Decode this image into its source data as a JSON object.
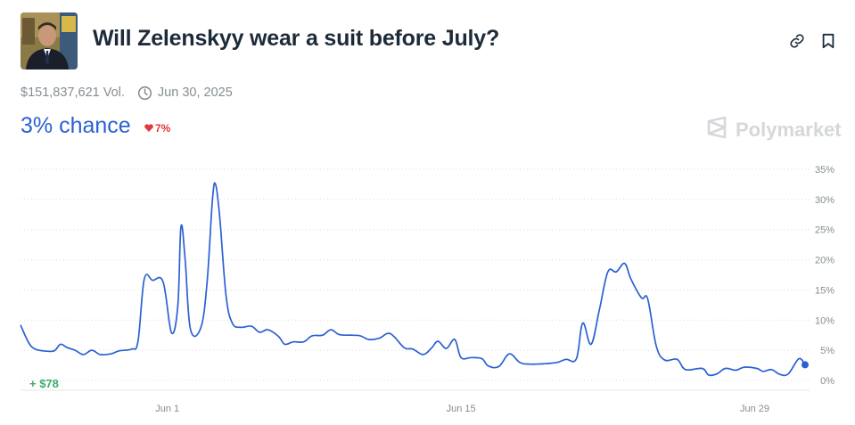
{
  "header": {
    "title": "Will Zelenskyy wear a suit before July?",
    "link_icon": "link-icon",
    "bookmark_icon": "bookmark-icon"
  },
  "meta": {
    "volume": "$151,837,621 Vol.",
    "end_date": "Jun 30, 2025"
  },
  "status": {
    "chance": "3% chance",
    "delta": "7%",
    "delta_direction": "down",
    "delta_color": "#e23939"
  },
  "brand": {
    "name": "Polymarket"
  },
  "colors": {
    "accent": "#2b60d3",
    "title": "#1d2b39",
    "muted": "#858d92",
    "gain": "#3cab6c"
  },
  "chart_data": {
    "type": "line",
    "x_ticks": [
      "Jun 1",
      "Jun 15",
      "Jun 29"
    ],
    "y_ticks": [
      "0%",
      "5%",
      "10%",
      "15%",
      "20%",
      "25%",
      "30%",
      "35%"
    ],
    "ylim": [
      0,
      35
    ],
    "grid": true,
    "annotation": "+ $78",
    "series": [
      {
        "values": [
          [
            0,
            9.2
          ],
          [
            0.4,
            6.2
          ],
          [
            0.7,
            5.2
          ],
          [
            1.1,
            4.9
          ],
          [
            1.6,
            4.9
          ],
          [
            1.9,
            6.0
          ],
          [
            2.2,
            5.5
          ],
          [
            2.6,
            5.0
          ],
          [
            3.0,
            4.3
          ],
          [
            3.4,
            5.0
          ],
          [
            3.8,
            4.3
          ],
          [
            4.3,
            4.4
          ],
          [
            4.7,
            4.9
          ],
          [
            5.3,
            5.2
          ],
          [
            5.6,
            6.5
          ],
          [
            5.9,
            16.8
          ],
          [
            6.3,
            16.6
          ],
          [
            6.8,
            16.3
          ],
          [
            7.2,
            7.9
          ],
          [
            7.5,
            12.5
          ],
          [
            7.65,
            25.5
          ],
          [
            7.85,
            20.0
          ],
          [
            8.1,
            8.5
          ],
          [
            8.6,
            8.8
          ],
          [
            8.9,
            16.5
          ],
          [
            9.15,
            30.0
          ],
          [
            9.3,
            32.5
          ],
          [
            9.5,
            27.0
          ],
          [
            9.8,
            14.0
          ],
          [
            10.1,
            9.5
          ],
          [
            10.5,
            8.8
          ],
          [
            11.0,
            9.0
          ],
          [
            11.4,
            8.0
          ],
          [
            11.8,
            8.4
          ],
          [
            12.3,
            7.3
          ],
          [
            12.6,
            6.0
          ],
          [
            13.0,
            6.4
          ],
          [
            13.5,
            6.4
          ],
          [
            13.9,
            7.4
          ],
          [
            14.4,
            7.5
          ],
          [
            14.8,
            8.4
          ],
          [
            15.2,
            7.6
          ],
          [
            15.8,
            7.5
          ],
          [
            16.2,
            7.4
          ],
          [
            16.6,
            6.8
          ],
          [
            17.1,
            7.0
          ],
          [
            17.5,
            7.8
          ],
          [
            17.8,
            7.3
          ],
          [
            18.3,
            5.4
          ],
          [
            18.7,
            5.2
          ],
          [
            19.2,
            4.3
          ],
          [
            19.6,
            5.4
          ],
          [
            19.9,
            6.5
          ],
          [
            20.3,
            5.3
          ],
          [
            20.7,
            6.8
          ],
          [
            21.0,
            3.8
          ],
          [
            21.5,
            3.8
          ],
          [
            22.0,
            3.6
          ],
          [
            22.3,
            2.4
          ],
          [
            22.8,
            2.3
          ],
          [
            23.3,
            4.4
          ],
          [
            23.8,
            3.0
          ],
          [
            24.3,
            2.7
          ],
          [
            25.1,
            2.8
          ],
          [
            25.6,
            3.0
          ],
          [
            26.0,
            3.5
          ],
          [
            26.5,
            3.6
          ],
          [
            26.8,
            9.5
          ],
          [
            27.2,
            6.0
          ],
          [
            27.6,
            11.8
          ],
          [
            28.0,
            18.0
          ],
          [
            28.4,
            18.0
          ],
          [
            28.8,
            19.4
          ],
          [
            29.1,
            16.8
          ],
          [
            29.6,
            13.7
          ],
          [
            29.9,
            13.5
          ],
          [
            30.3,
            5.8
          ],
          [
            30.7,
            3.4
          ],
          [
            31.3,
            3.5
          ],
          [
            31.7,
            1.8
          ],
          [
            32.5,
            2.0
          ],
          [
            32.8,
            0.9
          ],
          [
            33.2,
            1.1
          ],
          [
            33.6,
            2.0
          ],
          [
            34.1,
            1.7
          ],
          [
            34.5,
            2.2
          ],
          [
            35.1,
            2.0
          ],
          [
            35.4,
            1.5
          ],
          [
            35.8,
            1.8
          ],
          [
            36.2,
            1.0
          ],
          [
            36.6,
            1.1
          ],
          [
            37.1,
            3.6
          ],
          [
            37.4,
            2.6
          ]
        ]
      }
    ]
  }
}
